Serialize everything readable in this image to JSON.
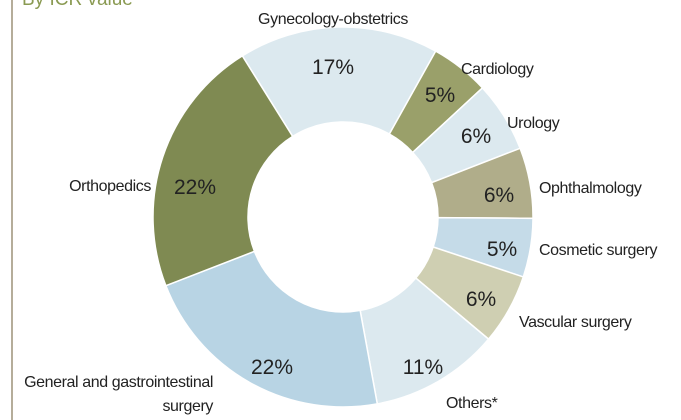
{
  "chart_data": {
    "type": "donut",
    "title": "By ICR value",
    "categories": [
      "Gynecology-obstetrics",
      "Cardiology",
      "Urology",
      "Ophthalmology",
      "Cosmetic surgery",
      "Vascular surgery",
      "Others*",
      "General and gastrointestinal surgery",
      "Orthopedics"
    ],
    "values": [
      17,
      5,
      6,
      6,
      5,
      6,
      11,
      22,
      22
    ],
    "value_labels": [
      "17%",
      "5%",
      "6%",
      "6%",
      "5%",
      "6%",
      "11%",
      "22%",
      "22%"
    ],
    "colors": [
      "#dce9ef",
      "#9aa06a",
      "#dce9ef",
      "#b0ad8a",
      "#c5dbe8",
      "#cfcfb2",
      "#dce9ef",
      "#b8d4e4",
      "#7f8a52"
    ]
  }
}
